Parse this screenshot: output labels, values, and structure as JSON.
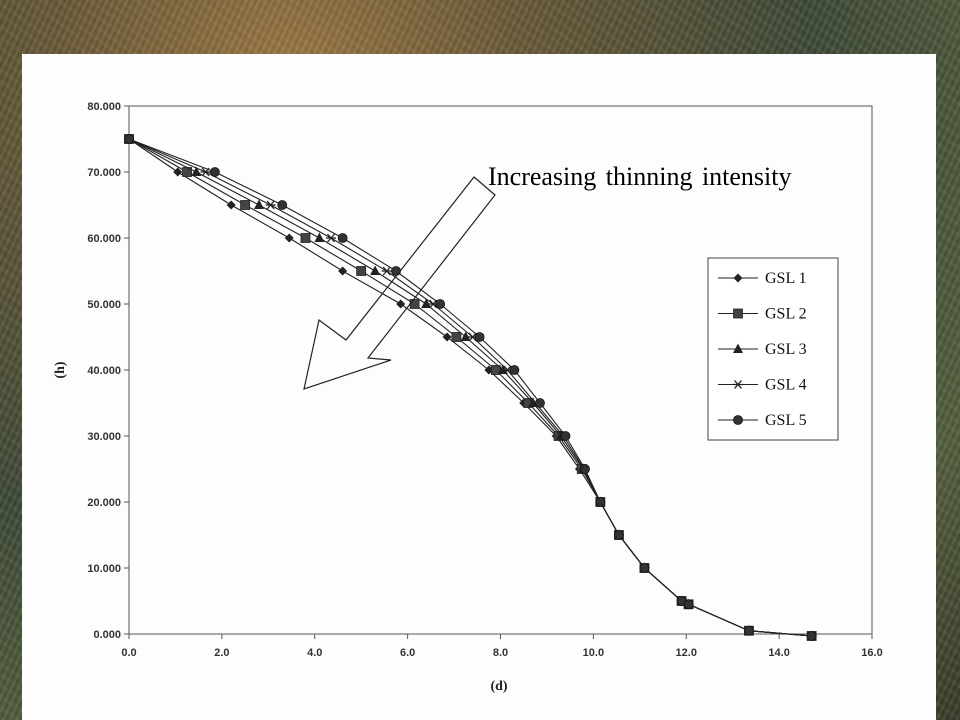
{
  "chart_data": {
    "type": "line",
    "title": "",
    "xlabel": "(d)",
    "ylabel": "(h)",
    "xlim": [
      0,
      16
    ],
    "ylim": [
      0,
      80
    ],
    "x_ticks": [
      "0.0",
      "2.0",
      "4.0",
      "6.0",
      "8.0",
      "10.0",
      "12.0",
      "14.0",
      "16.0"
    ],
    "y_ticks": [
      "0.000",
      "10.000",
      "20.000",
      "30.000",
      "40.000",
      "50.000",
      "60.000",
      "70.000",
      "80.000"
    ],
    "annotation": "Increasing thinning intensity",
    "legend_position": "right",
    "grid": false,
    "series": [
      {
        "name": "GSL 1",
        "marker": "diamond",
        "points": [
          [
            0.0,
            75
          ],
          [
            1.05,
            70
          ],
          [
            2.2,
            65
          ],
          [
            3.45,
            60
          ],
          [
            4.6,
            55
          ],
          [
            5.85,
            50
          ],
          [
            6.85,
            45
          ],
          [
            7.75,
            40
          ],
          [
            8.5,
            35
          ],
          [
            9.2,
            30
          ],
          [
            9.7,
            25
          ],
          [
            10.15,
            20
          ],
          [
            10.55,
            15
          ],
          [
            11.1,
            10
          ],
          [
            11.9,
            5
          ],
          [
            12.05,
            4.5
          ],
          [
            13.35,
            0.5
          ],
          [
            14.7,
            -0.3
          ]
        ]
      },
      {
        "name": "GSL 2",
        "marker": "square",
        "points": [
          [
            0.0,
            75
          ],
          [
            1.25,
            70
          ],
          [
            2.5,
            65
          ],
          [
            3.8,
            60
          ],
          [
            5.0,
            55
          ],
          [
            6.15,
            50
          ],
          [
            7.05,
            45
          ],
          [
            7.9,
            40
          ],
          [
            8.6,
            35
          ],
          [
            9.25,
            30
          ],
          [
            9.75,
            25
          ],
          [
            10.15,
            20
          ],
          [
            10.55,
            15
          ],
          [
            11.1,
            10
          ],
          [
            11.9,
            5
          ],
          [
            12.05,
            4.5
          ],
          [
            13.35,
            0.5
          ],
          [
            14.7,
            -0.3
          ]
        ]
      },
      {
        "name": "GSL 3",
        "marker": "triangle",
        "points": [
          [
            0.0,
            75
          ],
          [
            1.45,
            70
          ],
          [
            2.8,
            65
          ],
          [
            4.1,
            60
          ],
          [
            5.3,
            55
          ],
          [
            6.4,
            50
          ],
          [
            7.25,
            45
          ],
          [
            8.05,
            40
          ],
          [
            8.7,
            35
          ],
          [
            9.3,
            30
          ],
          [
            9.78,
            25
          ],
          [
            10.15,
            20
          ],
          [
            10.55,
            15
          ],
          [
            11.1,
            10
          ],
          [
            11.9,
            5
          ],
          [
            12.05,
            4.5
          ],
          [
            13.35,
            0.5
          ],
          [
            14.7,
            -0.3
          ]
        ]
      },
      {
        "name": "GSL 4",
        "marker": "star",
        "points": [
          [
            0.0,
            75
          ],
          [
            1.65,
            70
          ],
          [
            3.05,
            65
          ],
          [
            4.35,
            60
          ],
          [
            5.55,
            55
          ],
          [
            6.55,
            50
          ],
          [
            7.4,
            45
          ],
          [
            8.15,
            40
          ],
          [
            8.75,
            35
          ],
          [
            9.35,
            30
          ],
          [
            9.8,
            25
          ],
          [
            10.15,
            20
          ],
          [
            10.55,
            15
          ],
          [
            11.1,
            10
          ],
          [
            11.9,
            5
          ],
          [
            12.05,
            4.5
          ],
          [
            13.35,
            0.5
          ],
          [
            14.7,
            -0.3
          ]
        ]
      },
      {
        "name": "GSL 5",
        "marker": "circle",
        "points": [
          [
            0.0,
            75
          ],
          [
            1.85,
            70
          ],
          [
            3.3,
            65
          ],
          [
            4.6,
            60
          ],
          [
            5.75,
            55
          ],
          [
            6.7,
            50
          ],
          [
            7.55,
            45
          ],
          [
            8.3,
            40
          ],
          [
            8.85,
            35
          ],
          [
            9.4,
            30
          ],
          [
            9.82,
            25
          ],
          [
            10.15,
            20
          ],
          [
            10.55,
            15
          ],
          [
            11.1,
            10
          ],
          [
            11.9,
            5
          ],
          [
            12.05,
            4.5
          ],
          [
            13.35,
            0.5
          ],
          [
            14.7,
            -0.3
          ]
        ]
      }
    ]
  }
}
